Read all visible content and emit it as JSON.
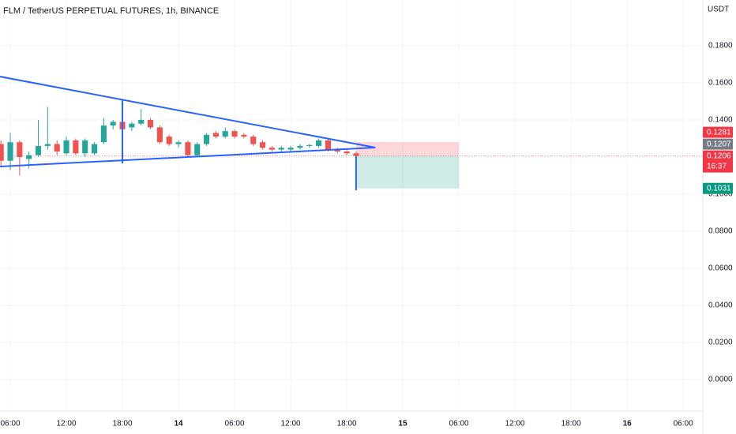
{
  "chart_data": {
    "type": "candlestick",
    "title": "FLM / TetherUS PERPETUAL FUTURES, 1h, BINANCE",
    "currency": "USDT",
    "x": [
      -1,
      0,
      1,
      2,
      3,
      4,
      5,
      6,
      7,
      8,
      9,
      10,
      11,
      12,
      13,
      14,
      15,
      16,
      17,
      18,
      19,
      20,
      21,
      22,
      23,
      24,
      25,
      26,
      27,
      28,
      29,
      30,
      31,
      32,
      33,
      34,
      35,
      36,
      37
    ],
    "open": [
      0.127,
      0.118,
      0.128,
      0.119,
      0.121,
      0.126,
      0.127,
      0.122,
      0.129,
      0.122,
      0.122,
      0.128,
      0.137,
      0.139,
      0.136,
      0.138,
      0.14,
      0.136,
      0.131,
      0.127,
      0.128,
      0.121,
      0.127,
      0.133,
      0.131,
      0.134,
      0.132,
      0.131,
      0.128,
      0.125,
      0.124,
      0.124,
      0.125,
      0.126,
      0.126,
      0.129,
      0.124,
      0.123,
      0.122
    ],
    "high": [
      0.129,
      0.133,
      0.129,
      0.123,
      0.14,
      0.147,
      0.129,
      0.131,
      0.13,
      0.13,
      0.128,
      0.141,
      0.14,
      0.15,
      0.139,
      0.146,
      0.141,
      0.137,
      0.132,
      0.129,
      0.129,
      0.128,
      0.133,
      0.134,
      0.136,
      0.135,
      0.133,
      0.132,
      0.129,
      0.126,
      0.126,
      0.126,
      0.127,
      0.127,
      0.13,
      0.13,
      0.125,
      0.124,
      0.123
    ],
    "low": [
      0.115,
      0.113,
      0.11,
      0.114,
      0.12,
      0.124,
      0.121,
      0.121,
      0.121,
      0.12,
      0.121,
      0.127,
      0.135,
      0.134,
      0.134,
      0.137,
      0.135,
      0.127,
      0.126,
      0.125,
      0.12,
      0.12,
      0.126,
      0.13,
      0.13,
      0.13,
      0.13,
      0.126,
      0.124,
      0.123,
      0.123,
      0.123,
      0.124,
      0.125,
      0.125,
      0.123,
      0.122,
      0.121,
      0.1198
    ],
    "close": [
      0.118,
      0.128,
      0.12,
      0.121,
      0.126,
      0.127,
      0.123,
      0.129,
      0.122,
      0.129,
      0.127,
      0.137,
      0.139,
      0.135,
      0.138,
      0.14,
      0.136,
      0.128,
      0.127,
      0.128,
      0.121,
      0.127,
      0.132,
      0.131,
      0.134,
      0.131,
      0.131,
      0.127,
      0.125,
      0.124,
      0.125,
      0.125,
      0.126,
      0.1265,
      0.129,
      0.124,
      0.123,
      0.122,
      0.1206
    ],
    "up_color": "#26a69a",
    "down_color": "#ef5350",
    "xlim": [
      -1.1,
      74.1
    ],
    "ylim": [
      -0.0166,
      0.2047
    ],
    "xticks": [
      {
        "value": 0,
        "label": "06:00"
      },
      {
        "value": 6,
        "label": "12:00"
      },
      {
        "value": 12,
        "label": "18:00"
      },
      {
        "value": 18,
        "label": "14"
      },
      {
        "value": 24,
        "label": "06:00"
      },
      {
        "value": 30,
        "label": "12:00"
      },
      {
        "value": 36,
        "label": "18:00"
      },
      {
        "value": 42,
        "label": "15"
      },
      {
        "value": 48,
        "label": "06:00"
      },
      {
        "value": 54,
        "label": "12:00"
      },
      {
        "value": 60,
        "label": "18:00"
      },
      {
        "value": 66,
        "label": "16"
      },
      {
        "value": 72,
        "label": "06:00"
      }
    ],
    "yticks": [
      {
        "value": 0,
        "label": "0.0000"
      },
      {
        "value": 0.02,
        "label": "0.0200"
      },
      {
        "value": 0.04,
        "label": "0.0400"
      },
      {
        "value": 0.06,
        "label": "0.0600"
      },
      {
        "value": 0.08,
        "label": "0.0800"
      },
      {
        "value": 0.1,
        "label": "0.1000"
      },
      {
        "value": 0.12,
        "label": "0.1200"
      },
      {
        "value": 0.14,
        "label": "0.1400"
      },
      {
        "value": 0.16,
        "label": "0.1600"
      },
      {
        "value": 0.18,
        "label": "0.1800"
      }
    ],
    "grid": true,
    "lines": [
      {
        "color": "#2962ff",
        "x": [
          -1.1,
          39.05
        ],
        "y": [
          0.1634,
          0.1251
        ]
      },
      {
        "color": "#2962ff",
        "x": [
          -1.1,
          39.05
        ],
        "y": [
          0.1149,
          0.1251
        ]
      },
      {
        "color": "#2962ff",
        "x": [
          12,
          12
        ],
        "y": [
          0.1505,
          0.1166
        ]
      },
      {
        "color": "#2962ff",
        "x": [
          37,
          37
        ],
        "y": [
          0.1206,
          0.1021
        ]
      }
    ],
    "position": {
      "x": [
        37,
        48
      ],
      "entry": 0.1206,
      "stop": 0.1281,
      "target": 0.1031,
      "stop_color": "#f23645",
      "target_color": "#089981"
    },
    "last_price_line_color": "#f23645",
    "price_labels": [
      {
        "value": 0.1206,
        "label": "0.1206",
        "color": "#f23645",
        "countdown": "16:37"
      },
      {
        "value": 0.1207,
        "label": "0.1207",
        "color": "#787b86"
      },
      {
        "value": 0.1281,
        "label": "0.1281",
        "color": "#f23645"
      },
      {
        "value": 0.1031,
        "label": "0.1031",
        "color": "#089981"
      }
    ]
  }
}
